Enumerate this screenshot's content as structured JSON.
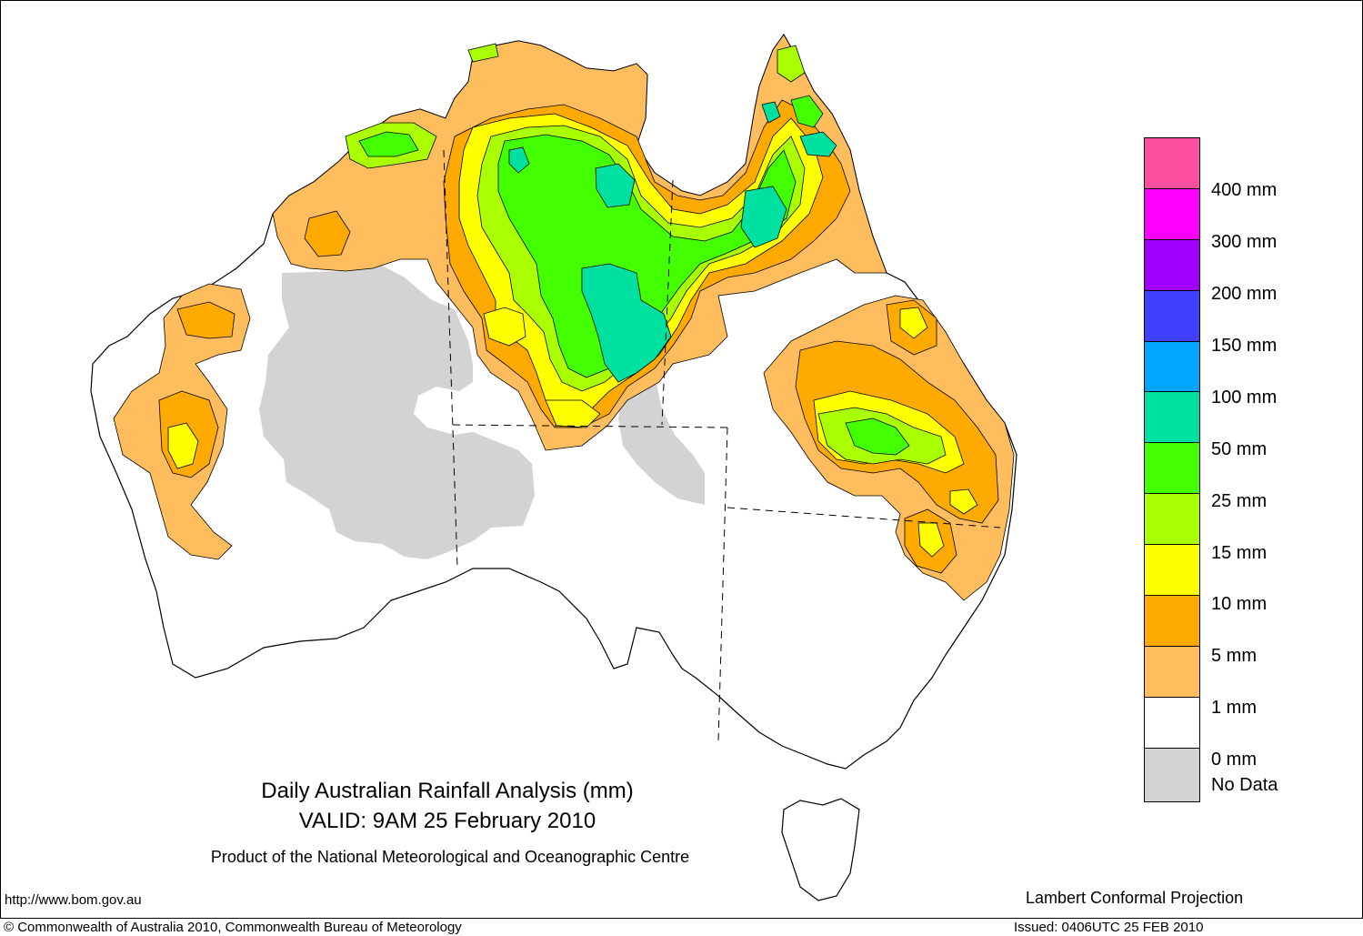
{
  "title": {
    "line1": "Daily Australian Rainfall Analysis (mm)",
    "line2": "VALID: 9AM 25 February 2010",
    "line3": "Product of the National Meteorological and Oceanographic Centre"
  },
  "projection": "Lambert Conformal Projection",
  "url": "http://www.bom.gov.au",
  "copyright": "© Commonwealth of Australia 2010, Commonwealth Bureau of Meteorology",
  "issued": "Issued: 0406UTC 25 FEB 2010",
  "legend": {
    "colors": [
      "#ff4f9e",
      "#ff00ff",
      "#a000ff",
      "#4040ff",
      "#00a6ff",
      "#00e0a0",
      "#44ff00",
      "#aaff00",
      "#ffff00",
      "#ffaa00",
      "#ffbd5e",
      "#ffffff",
      "#d3d3d3"
    ],
    "labels": [
      "400 mm",
      "300 mm",
      "200 mm",
      "150 mm",
      "100 mm",
      "50 mm",
      "25 mm",
      "15 mm",
      "10 mm",
      "5 mm",
      "1 mm",
      "0 mm",
      "No Data"
    ]
  },
  "map_colors": {
    "nodata": "#d3d3d3",
    "r1": "#ffbd5e",
    "r5": "#ffaa00",
    "r10": "#ffff00",
    "r15": "#aaff00",
    "r25": "#44ff00",
    "r50": "#00e0a0"
  }
}
